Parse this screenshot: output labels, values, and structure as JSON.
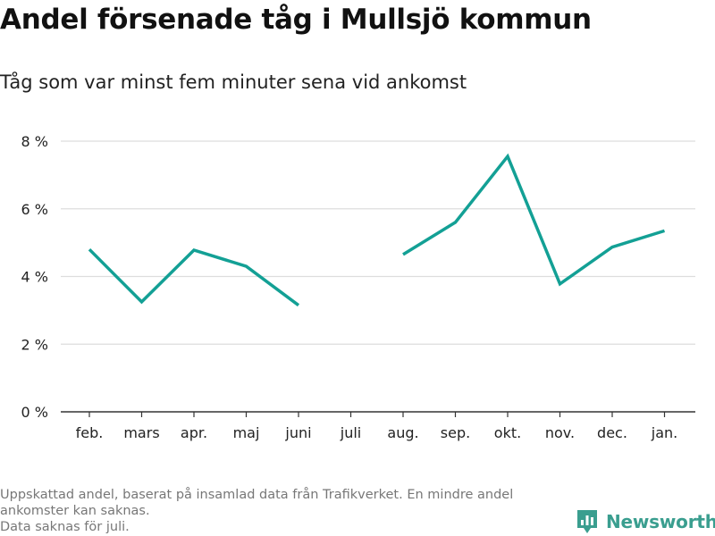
{
  "title": "Andel försenade tåg i Mullsjö kommun",
  "subtitle": "Tåg som var minst fem minuter sena vid ankomst",
  "footnote": {
    "line1": "Uppskattad andel, baserat på insamlad data från Trafikverket. En mindre andel",
    "line2": "ankomster kan saknas.",
    "line3": "Data saknas för juli."
  },
  "brand": {
    "name": "Newsworthy",
    "icon": "newsworthy-logo-icon",
    "color": "#3a9e8f"
  },
  "chart_data": {
    "type": "line",
    "title": "Andel försenade tåg i Mullsjö kommun",
    "subtitle": "Tåg som var minst fem minuter sena vid ankomst",
    "xlabel": "",
    "ylabel": "",
    "categories": [
      "feb.",
      "mars",
      "apr.",
      "maj",
      "juni",
      "juli",
      "aug.",
      "sep.",
      "okt.",
      "nov.",
      "dec.",
      "jan."
    ],
    "series": [
      {
        "values": [
          4.8,
          3.25,
          4.78,
          4.3,
          3.15,
          null,
          4.65,
          5.6,
          7.55,
          3.78,
          4.87,
          5.35
        ],
        "color": "#13a095"
      }
    ],
    "ylim": [
      0,
      8
    ],
    "yticks": [
      0,
      2,
      4,
      6,
      8
    ],
    "ytick_labels": [
      "0 %",
      "2 %",
      "4 %",
      "6 %",
      "8 %"
    ],
    "grid": true,
    "grid_color": "#dddddd"
  }
}
